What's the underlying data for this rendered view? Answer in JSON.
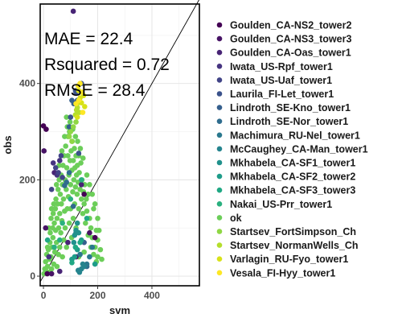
{
  "chart_data": {
    "type": "scatter",
    "xlabel": "svm",
    "ylabel": "obs",
    "xlim": [
      -12,
      575
    ],
    "ylim": [
      -20,
      565
    ],
    "x_ticks": [
      0,
      200,
      400
    ],
    "y_ticks": [
      0,
      200,
      400
    ],
    "grid": true,
    "legend_position": "right",
    "annotations": [
      {
        "key": "mae",
        "text": "MAE = 22.4"
      },
      {
        "key": "rsq",
        "text": "Rsquared = 0.72"
      },
      {
        "key": "rmse",
        "text": "RMSE = 28.4"
      }
    ],
    "reference_line": {
      "type": "identity",
      "from": [
        -12,
        -12
      ],
      "to": [
        575,
        575
      ]
    },
    "series": [
      {
        "name": "Goulden_CA-NS2_tower2",
        "color": "#440154",
        "points": [
          [
            0,
            312
          ],
          [
            10,
            305
          ],
          [
            150,
            170
          ],
          [
            14,
            5
          ],
          [
            190,
            80
          ]
        ]
      },
      {
        "name": "Goulden_CA-NS3_tower3",
        "color": "#471365",
        "points": [
          [
            2,
            260
          ],
          [
            8,
            100
          ],
          [
            120,
            40
          ],
          [
            170,
            90
          ],
          [
            30,
            5
          ]
        ]
      },
      {
        "name": "Goulden_CA-Oas_tower1",
        "color": "#482475",
        "points": [
          [
            110,
            550
          ],
          [
            40,
            215
          ],
          [
            140,
            190
          ],
          [
            90,
            70
          ],
          [
            60,
            10
          ]
        ]
      },
      {
        "name": "Iwata_US-Rpf_tower1",
        "color": "#463480",
        "points": [
          [
            36,
            235
          ],
          [
            50,
            210
          ],
          [
            60,
            240
          ],
          [
            120,
            360
          ],
          [
            20,
            40
          ]
        ]
      },
      {
        "name": "Iwata_US-Uaf_tower1",
        "color": "#414487",
        "points": [
          [
            45,
            225
          ],
          [
            55,
            215
          ],
          [
            65,
            250
          ],
          [
            70,
            205
          ],
          [
            30,
            180
          ]
        ]
      },
      {
        "name": "Laurila_FI-Let_tower1",
        "color": "#3B528B",
        "points": [
          [
            120,
            380
          ],
          [
            118,
            385
          ],
          [
            100,
            330
          ],
          [
            130,
            255
          ],
          [
            140,
            400
          ]
        ]
      },
      {
        "name": "Lindroth_SE-Kno_tower1",
        "color": "#355F8D",
        "points": [
          [
            105,
            365
          ],
          [
            112,
            358
          ],
          [
            125,
            365
          ],
          [
            95,
            310
          ],
          [
            150,
            70
          ]
        ]
      },
      {
        "name": "Lindroth_SE-Nor_tower1",
        "color": "#2F6C8E",
        "points": [
          [
            85,
            195
          ],
          [
            95,
            215
          ],
          [
            78,
            188
          ],
          [
            160,
            20
          ],
          [
            110,
            145
          ]
        ]
      },
      {
        "name": "Machimura_RU-Nel_tower1",
        "color": "#2A788E",
        "points": [
          [
            120,
            90
          ],
          [
            180,
            60
          ],
          [
            160,
            25
          ],
          [
            135,
            45
          ],
          [
            170,
            40
          ]
        ]
      },
      {
        "name": "McCaughey_CA-Man_tower1",
        "color": "#25848E",
        "points": [
          [
            128,
            12
          ],
          [
            133,
            8
          ],
          [
            140,
            15
          ],
          [
            150,
            20
          ],
          [
            145,
            25
          ]
        ]
      },
      {
        "name": "Mkhabela_CA-SF1_tower1",
        "color": "#21918C",
        "points": [
          [
            115,
            85
          ],
          [
            120,
            95
          ],
          [
            125,
            110
          ],
          [
            130,
            90
          ],
          [
            112,
            70
          ]
        ]
      },
      {
        "name": "Mkhabela_CA-SF2_tower2",
        "color": "#1E9C89",
        "points": [
          [
            105,
            35
          ],
          [
            115,
            40
          ],
          [
            125,
            55
          ],
          [
            140,
            75
          ],
          [
            190,
            25
          ]
        ]
      },
      {
        "name": "Mkhabela_CA-SF3_tower3",
        "color": "#20A884",
        "points": [
          [
            15,
            75
          ],
          [
            105,
            28
          ],
          [
            118,
            60
          ],
          [
            135,
            70
          ],
          [
            160,
            120
          ]
        ]
      },
      {
        "name": "Nakai_US-Prr_tower1",
        "color": "#2AB07F",
        "points": [
          [
            40,
            60
          ],
          [
            60,
            75
          ],
          [
            70,
            110
          ],
          [
            100,
            160
          ],
          [
            140,
            200
          ]
        ]
      },
      {
        "name": "ok",
        "color": "#6CCE59",
        "points": [
          [
            2,
            5
          ],
          [
            5,
            15
          ],
          [
            8,
            30
          ],
          [
            10,
            10
          ],
          [
            12,
            45
          ],
          [
            15,
            20
          ],
          [
            18,
            55
          ],
          [
            20,
            8
          ],
          [
            22,
            35
          ],
          [
            24,
            70
          ],
          [
            25,
            90
          ],
          [
            28,
            40
          ],
          [
            30,
            15
          ],
          [
            32,
            60
          ],
          [
            34,
            100
          ],
          [
            35,
            80
          ],
          [
            36,
            130
          ],
          [
            38,
            25
          ],
          [
            40,
            110
          ],
          [
            42,
            50
          ],
          [
            44,
            140
          ],
          [
            45,
            95
          ],
          [
            46,
            160
          ],
          [
            48,
            70
          ],
          [
            50,
            20
          ],
          [
            50,
            120
          ],
          [
            52,
            150
          ],
          [
            54,
            180
          ],
          [
            55,
            45
          ],
          [
            56,
            100
          ],
          [
            58,
            200
          ],
          [
            60,
            130
          ],
          [
            60,
            60
          ],
          [
            62,
            170
          ],
          [
            64,
            90
          ],
          [
            65,
            210
          ],
          [
            66,
            150
          ],
          [
            68,
            115
          ],
          [
            70,
            190
          ],
          [
            70,
            40
          ],
          [
            72,
            230
          ],
          [
            74,
            160
          ],
          [
            75,
            75
          ],
          [
            76,
            250
          ],
          [
            78,
            135
          ],
          [
            80,
            200
          ],
          [
            80,
            100
          ],
          [
            82,
            270
          ],
          [
            84,
            180
          ],
          [
            85,
            60
          ],
          [
            86,
            225
          ],
          [
            88,
            140
          ],
          [
            90,
            290
          ],
          [
            90,
            250
          ],
          [
            92,
            165
          ],
          [
            94,
            210
          ],
          [
            95,
            110
          ],
          [
            96,
            300
          ],
          [
            98,
            240
          ],
          [
            100,
            190
          ],
          [
            100,
            140
          ],
          [
            102,
            260
          ],
          [
            104,
            80
          ],
          [
            105,
            220
          ],
          [
            106,
            280
          ],
          [
            108,
            175
          ],
          [
            110,
            240
          ],
          [
            110,
            120
          ],
          [
            112,
            200
          ],
          [
            114,
            265
          ],
          [
            115,
            150
          ],
          [
            116,
            225
          ],
          [
            118,
            185
          ],
          [
            120,
            250
          ],
          [
            120,
            100
          ],
          [
            122,
            210
          ],
          [
            124,
            170
          ],
          [
            125,
            230
          ],
          [
            128,
            195
          ],
          [
            130,
            250
          ],
          [
            130,
            140
          ],
          [
            132,
            215
          ],
          [
            135,
            180
          ],
          [
            138,
            235
          ],
          [
            140,
            160
          ],
          [
            142,
            200
          ],
          [
            145,
            130
          ],
          [
            148,
            175
          ],
          [
            150,
            150
          ],
          [
            152,
            190
          ],
          [
            155,
            110
          ],
          [
            158,
            160
          ],
          [
            160,
            135
          ],
          [
            165,
            170
          ],
          [
            170,
            120
          ],
          [
            175,
            100
          ],
          [
            180,
            80
          ],
          [
            185,
            140
          ],
          [
            190,
            60
          ],
          [
            195,
            95
          ],
          [
            200,
            40
          ],
          [
            200,
            75
          ],
          [
            210,
            55
          ],
          [
            215,
            35
          ],
          [
            28,
            120
          ],
          [
            38,
            150
          ],
          [
            48,
            190
          ],
          [
            58,
            230
          ],
          [
            68,
            260
          ],
          [
            78,
            290
          ],
          [
            88,
            310
          ],
          [
            98,
            320
          ],
          [
            85,
            330
          ],
          [
            108,
            305
          ],
          [
            118,
            290
          ],
          [
            126,
            280
          ],
          [
            136,
            265
          ],
          [
            146,
            245
          ],
          [
            20,
            100
          ],
          [
            15,
            60
          ],
          [
            30,
            140
          ],
          [
            160,
            210
          ],
          [
            170,
            190
          ],
          [
            180,
            170
          ],
          [
            190,
            150
          ],
          [
            200,
            120
          ],
          [
            205,
            95
          ],
          [
            165,
            85
          ],
          [
            175,
            60
          ],
          [
            185,
            45
          ],
          [
            195,
            30
          ],
          [
            150,
            50
          ],
          [
            130,
            40
          ]
        ]
      },
      {
        "name": "Startsev_FortSimpson_Ch",
        "color": "#8FD744",
        "points": [
          [
            100,
            300
          ],
          [
            110,
            310
          ],
          [
            95,
            290
          ],
          [
            120,
            320
          ],
          [
            105,
            280
          ]
        ]
      },
      {
        "name": "Startsev_NormanWells_Ch",
        "color": "#B4DE2C",
        "points": [
          [
            125,
            350
          ],
          [
            128,
            360
          ],
          [
            132,
            340
          ],
          [
            118,
            335
          ],
          [
            122,
            345
          ]
        ]
      },
      {
        "name": "Varlagin_RU-Fyo_tower1",
        "color": "#D8E219",
        "points": [
          [
            130,
            385
          ],
          [
            135,
            370
          ],
          [
            140,
            360
          ],
          [
            148,
            375
          ],
          [
            125,
            330
          ],
          [
            152,
            352
          ]
        ]
      },
      {
        "name": "Vesala_FI-Hyy_tower1",
        "color": "#FDE725",
        "points": [
          [
            128,
            395
          ],
          [
            135,
            400
          ],
          [
            142,
            382
          ],
          [
            130,
            365
          ],
          [
            120,
            358
          ],
          [
            145,
            340
          ]
        ]
      }
    ]
  }
}
